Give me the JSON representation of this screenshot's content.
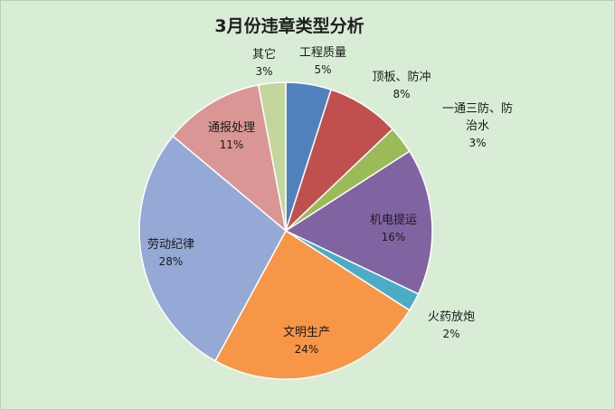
{
  "chart_data": {
    "type": "pie",
    "title": "3月份违章类型分析",
    "slices": [
      {
        "label": "工程质量",
        "value": 5,
        "value_text": "5%",
        "color": "#4f81bd"
      },
      {
        "label": "顶板、防冲",
        "value": 8,
        "value_text": "8%",
        "color": "#c0504d"
      },
      {
        "label": "一通三防、防治水",
        "value": 3,
        "value_text": "3%",
        "color": "#9bbb59"
      },
      {
        "label": "机电提运",
        "value": 16,
        "value_text": "16%",
        "color": "#8064a2"
      },
      {
        "label": "火药放炮",
        "value": 2,
        "value_text": "2%",
        "color": "#4bacc6"
      },
      {
        "label": "文明生产",
        "value": 24,
        "value_text": "24%",
        "color": "#f79646"
      },
      {
        "label": "劳动纪律",
        "value": 28,
        "value_text": "28%",
        "color": "#95a9d6"
      },
      {
        "label": "通报处理",
        "value": 11,
        "value_text": "11%",
        "color": "#d99694"
      },
      {
        "label": "其它",
        "value": 3,
        "value_text": "3%",
        "color": "#c3d69b"
      }
    ]
  }
}
